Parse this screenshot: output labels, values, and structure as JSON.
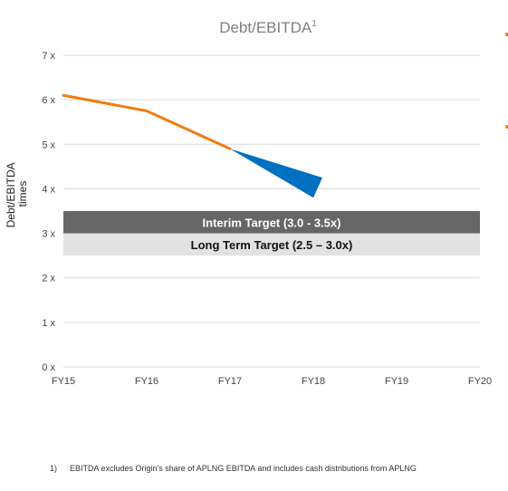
{
  "chart_data": {
    "type": "line",
    "title": "Debt/EBITDA",
    "title_superscript": "1",
    "ylabel_line1": "Debt/EBITDA",
    "ylabel_line2": "times",
    "ylim": [
      0,
      7
    ],
    "y_ticks": [
      {
        "value": 0,
        "label": "0 x"
      },
      {
        "value": 1,
        "label": "1 x"
      },
      {
        "value": 2,
        "label": "2 x"
      },
      {
        "value": 3,
        "label": "3 x"
      },
      {
        "value": 4,
        "label": "4 x"
      },
      {
        "value": 5,
        "label": "5 x"
      },
      {
        "value": 6,
        "label": "6 x"
      },
      {
        "value": 7,
        "label": "7 x"
      }
    ],
    "categories": [
      "FY15",
      "FY16",
      "FY17",
      "FY18",
      "FY19",
      "FY20"
    ],
    "grid": true,
    "series": [
      {
        "color": "#ed7d12",
        "x": [
          "FY15",
          "FY16",
          "FY17"
        ],
        "values": [
          6.1,
          5.75,
          4.9
        ]
      }
    ],
    "projection": {
      "color": "#0070c0",
      "start": {
        "x": "FY17",
        "value": 4.9
      },
      "end": {
        "x": "FY18",
        "low": 3.8,
        "high": 4.25
      }
    },
    "bands": [
      {
        "label": "Interim Target (3.0 - 3.5x)",
        "low": 3.0,
        "high": 3.5,
        "color": "#666666"
      },
      {
        "label": "Long Term Target (2.5 – 3.0x)",
        "low": 2.5,
        "high": 3.0,
        "color": "#e2e2e2"
      }
    ],
    "marker_color": "#ed7d12"
  },
  "footnote": {
    "number": "1)",
    "text": "EBITDA excludes Origin's share of APLNG EBITDA and includes cash distributions from APLNG"
  }
}
